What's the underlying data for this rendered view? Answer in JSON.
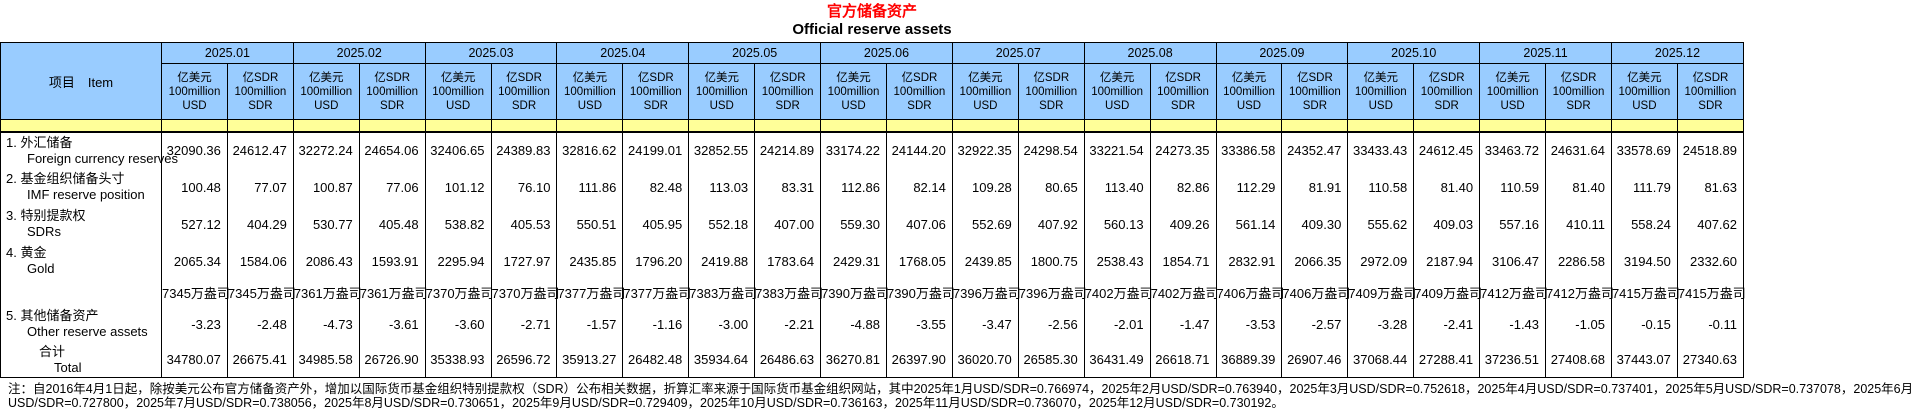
{
  "title": "官方储备资产",
  "subtitle": "Official reserve assets",
  "colors": {
    "title_red": "#ff0000",
    "header_blue": "#99ccff",
    "band_yellow": "#ffff99"
  },
  "table": {
    "item_header": "项目　Item",
    "months": [
      "2025.01",
      "2025.02",
      "2025.03",
      "2025.04",
      "2025.05",
      "2025.06",
      "2025.07",
      "2025.08",
      "2025.09",
      "2025.10",
      "2025.11",
      "2025.12"
    ],
    "unit_usd": [
      "亿美元",
      "100million",
      "USD"
    ],
    "unit_sdr": [
      "亿SDR",
      "100million",
      "SDR"
    ],
    "rows": [
      {
        "label_cn": "1. 外汇储备",
        "label_en": "Foreign currency reserves",
        "cells": [
          "32090.36",
          "24612.47",
          "32272.24",
          "24654.06",
          "32406.65",
          "24389.83",
          "32816.62",
          "24199.01",
          "32852.55",
          "24214.89",
          "33174.22",
          "24144.20",
          "32922.35",
          "24298.54",
          "33221.54",
          "24273.35",
          "33386.58",
          "24352.47",
          "33433.43",
          "24612.45",
          "33463.72",
          "24631.64",
          "33578.69",
          "24518.89"
        ]
      },
      {
        "label_cn": "2. 基金组织储备头寸",
        "label_en": "IMF reserve position",
        "cells": [
          "100.48",
          "77.07",
          "100.87",
          "77.06",
          "101.12",
          "76.10",
          "111.86",
          "82.48",
          "113.03",
          "83.31",
          "112.86",
          "82.14",
          "109.28",
          "80.65",
          "113.40",
          "82.86",
          "112.29",
          "81.91",
          "110.58",
          "81.40",
          "110.59",
          "81.40",
          "111.79",
          "81.63"
        ]
      },
      {
        "label_cn": "3. 特别提款权",
        "label_en": "SDRs",
        "cells": [
          "527.12",
          "404.29",
          "530.77",
          "405.48",
          "538.82",
          "405.53",
          "550.51",
          "405.95",
          "552.18",
          "407.00",
          "559.30",
          "407.06",
          "552.69",
          "407.92",
          "560.13",
          "409.26",
          "561.14",
          "409.30",
          "555.62",
          "409.03",
          "557.16",
          "410.11",
          "558.24",
          "407.62"
        ]
      },
      {
        "label_cn": "4. 黄金",
        "label_en": "Gold",
        "cells": [
          "2065.34",
          "1584.06",
          "2086.43",
          "1593.91",
          "2295.94",
          "1727.97",
          "2435.85",
          "1796.20",
          "2419.88",
          "1783.64",
          "2429.31",
          "1768.05",
          "2439.85",
          "1800.75",
          "2538.43",
          "1854.71",
          "2832.91",
          "2066.35",
          "2972.09",
          "2187.94",
          "3106.47",
          "2286.58",
          "3194.50",
          "2332.60"
        ]
      },
      {
        "label_cn": "",
        "label_en": "",
        "cells": [
          "7345万盎司",
          "7345万盎司",
          "7361万盎司",
          "7361万盎司",
          "7370万盎司",
          "7370万盎司",
          "7377万盎司",
          "7377万盎司",
          "7383万盎司",
          "7383万盎司",
          "7390万盎司",
          "7390万盎司",
          "7396万盎司",
          "7396万盎司",
          "7402万盎司",
          "7402万盎司",
          "7406万盎司",
          "7406万盎司",
          "7409万盎司",
          "7409万盎司",
          "7412万盎司",
          "7412万盎司",
          "7415万盎司",
          "7415万盎司"
        ]
      },
      {
        "label_cn": "5. 其他储备资产",
        "label_en": "Other reserve assets",
        "cells": [
          "-3.23",
          "-2.48",
          "-4.73",
          "-3.61",
          "-3.60",
          "-2.71",
          "-1.57",
          "-1.16",
          "-3.00",
          "-2.21",
          "-4.88",
          "-3.55",
          "-3.47",
          "-2.56",
          "-2.01",
          "-1.47",
          "-3.53",
          "-2.57",
          "-3.28",
          "-2.41",
          "-1.43",
          "-1.05",
          "-0.15",
          "-0.11"
        ]
      },
      {
        "label_cn": "合计",
        "label_en": "Total",
        "cells": [
          "34780.07",
          "26675.41",
          "34985.58",
          "26726.90",
          "35338.93",
          "26596.72",
          "35913.27",
          "26482.48",
          "35934.64",
          "26486.63",
          "36270.81",
          "26397.90",
          "36020.70",
          "26585.30",
          "36431.49",
          "26618.71",
          "36889.39",
          "26907.46",
          "37068.44",
          "27288.41",
          "37236.51",
          "27408.68",
          "37443.07",
          "27340.63"
        ]
      }
    ]
  },
  "note": {
    "line1": "注：自2016年4月1日起，除按美元公布官方储备资产外，增加以国际货币基金组织特别提款权（SDR）公布相关数据，折算汇率来源于国际货币基金组织网站，其中2025年1月USD/SDR=0.766974，2025年2月USD/SDR=0.763940，2025年3月USD/SDR=0.752618，2025年4月USD/SDR=0.737401，2025年5月USD/SDR=0.737078，2025年6月",
    "line2": "USD/SDR=0.727800，2025年7月USD/SDR=0.738056，2025年8月USD/SDR=0.730651，2025年9月USD/SDR=0.729409，2025年10月USD/SDR=0.736163，2025年11月USD/SDR=0.736070，2025年12月USD/SDR=0.730192。"
  }
}
